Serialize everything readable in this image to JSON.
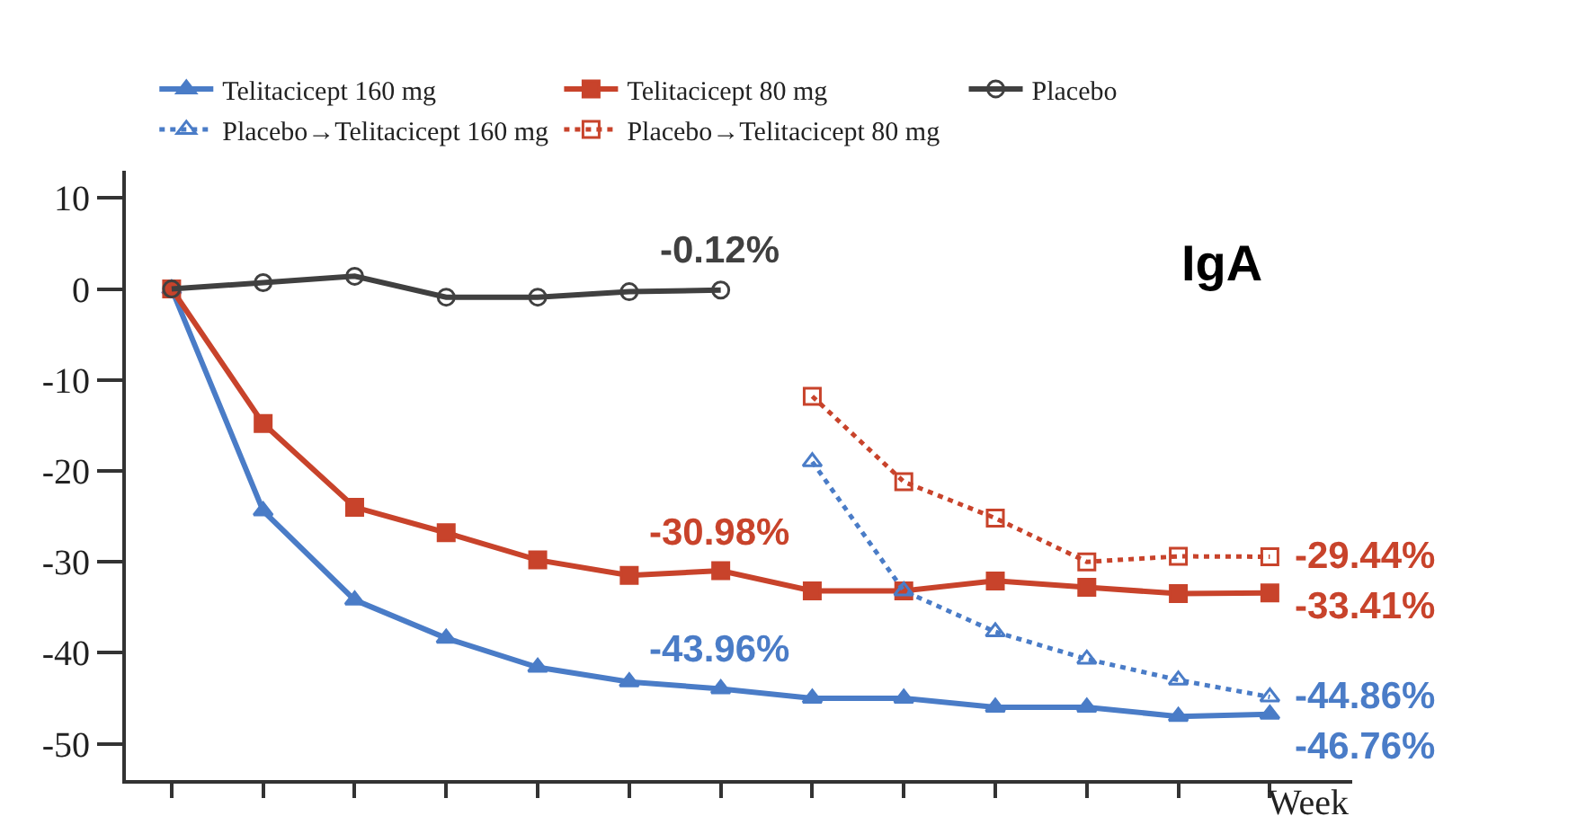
{
  "chart_data": {
    "type": "line",
    "xlabel": "Week",
    "categories": [
      null,
      null,
      null,
      null,
      null,
      null,
      null,
      null,
      null,
      null,
      null,
      null,
      null
    ],
    "series": [
      {
        "name": "Telitacicept 160 mg",
        "color": "#4a7cc7",
        "marker": "triangle",
        "line_style": "solid",
        "values": [
          0,
          -24.4,
          -34.2,
          -38.4,
          -41.6,
          -43.2,
          -43.96,
          -45.0,
          -45.0,
          -46.0,
          -46.0,
          -47.0,
          -46.76
        ],
        "value_labels": [
          null,
          null,
          null,
          null,
          null,
          null,
          "-43.96%",
          null,
          null,
          null,
          null,
          null,
          "-46.76%"
        ]
      },
      {
        "name": "Telitacicept 80 mg",
        "color": "#c8432b",
        "marker": "square",
        "line_style": "solid",
        "values": [
          0,
          -14.8,
          -24.0,
          -26.8,
          -29.8,
          -31.5,
          -30.98,
          -33.2,
          -33.2,
          -32.1,
          -32.8,
          -33.5,
          -33.41
        ],
        "value_labels": [
          null,
          null,
          null,
          null,
          null,
          null,
          "-30.98%",
          null,
          null,
          null,
          null,
          null,
          "-33.41%"
        ]
      },
      {
        "name": "Placebo",
        "color": "#404040",
        "marker": "circle-open",
        "line_style": "solid",
        "values": [
          0,
          0.7,
          1.4,
          -0.9,
          -0.9,
          -0.3,
          -0.12,
          null,
          null,
          null,
          null,
          null,
          null
        ],
        "value_labels": [
          null,
          null,
          null,
          null,
          null,
          null,
          "-0.12%",
          null,
          null,
          null,
          null,
          null,
          null
        ]
      },
      {
        "name": "Placebo→Telitacicept 160 mg",
        "color": "#4a7cc7",
        "marker": "triangle-open",
        "line_style": "dotted",
        "values": [
          null,
          null,
          null,
          null,
          null,
          null,
          null,
          -19.0,
          -33.2,
          -37.7,
          -40.7,
          -43.0,
          -44.86
        ],
        "value_labels": [
          null,
          null,
          null,
          null,
          null,
          null,
          null,
          null,
          null,
          null,
          null,
          null,
          "-44.86%"
        ]
      },
      {
        "name": "Placebo→Telitacicept 80 mg",
        "color": "#c8432b",
        "marker": "square-open",
        "line_style": "dotted",
        "values": [
          null,
          null,
          null,
          null,
          null,
          null,
          null,
          -11.8,
          -21.2,
          -25.2,
          -30.0,
          -29.4,
          -29.44
        ],
        "value_labels": [
          null,
          null,
          null,
          null,
          null,
          null,
          null,
          null,
          null,
          null,
          null,
          null,
          "-29.44%"
        ]
      }
    ],
    "ylim": [
      -54,
      13
    ],
    "yticks": [
      10,
      0,
      -10,
      -20,
      -30,
      -40,
      -50
    ],
    "tick_labels": "y",
    "legend": "top",
    "annotations": [
      "IgA"
    ]
  }
}
